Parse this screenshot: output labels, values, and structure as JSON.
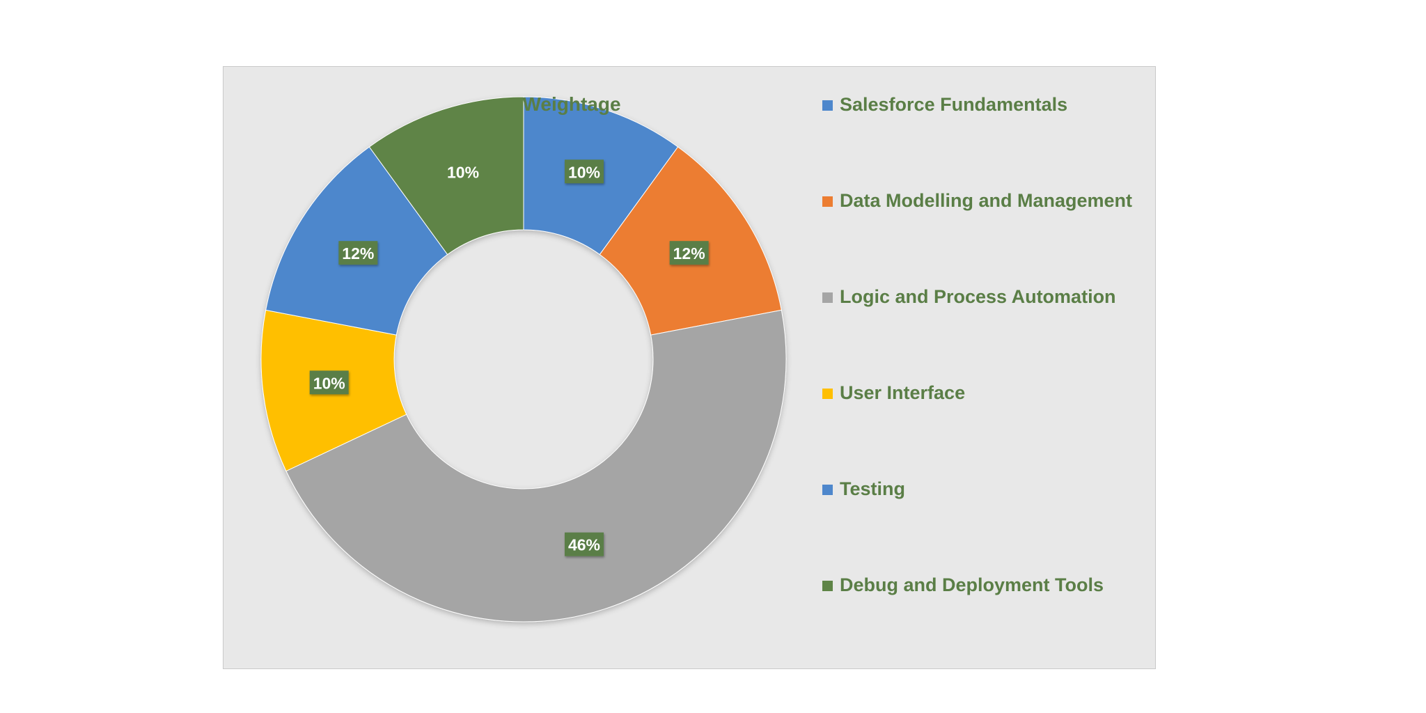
{
  "chart_data": {
    "type": "pie",
    "variant": "doughnut",
    "title": "Weightage",
    "categories": [
      "Salesforce Fundamentals",
      "Data Modelling and Management",
      "Logic and Process Automation",
      "User Interface",
      "Testing",
      "Debug and Deployment Tools"
    ],
    "values": [
      10,
      12,
      46,
      10,
      12,
      10
    ],
    "value_labels": [
      "10%",
      "12%",
      "46%",
      "10%",
      "12%",
      "10%"
    ],
    "colors": [
      "#4e87cc",
      "#ec7d31",
      "#a5a5a5",
      "#ffbf00",
      "#4e87cc",
      "#5e8446"
    ],
    "legend_position": "right"
  }
}
